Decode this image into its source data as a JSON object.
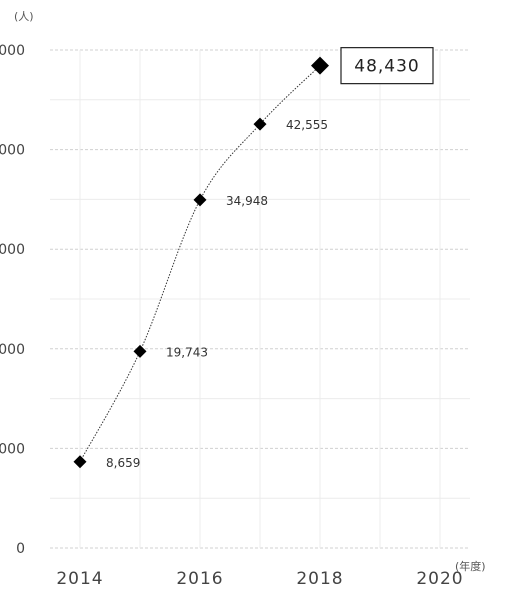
{
  "chart_data": {
    "type": "line",
    "ylabel": "(人)",
    "xlabel": "(年度)",
    "x_ticks": [
      "2014",
      "2016",
      "2018",
      "2020"
    ],
    "y_tick_labels": [
      "0",
      "000",
      "000",
      "000",
      "000",
      "000"
    ],
    "ylim": [
      0,
      50000
    ],
    "xlim": [
      2013.5,
      2020.5
    ],
    "grid": true,
    "series": [
      {
        "x": [
          2014,
          2015,
          2016,
          2017,
          2018
        ],
        "values": [
          8659,
          19743,
          34948,
          42555,
          48430
        ],
        "labels": [
          "8,659",
          "19,743",
          "34,948",
          "42,555",
          "48,430"
        ],
        "color": "#000000"
      }
    ],
    "callout_index": 4
  }
}
